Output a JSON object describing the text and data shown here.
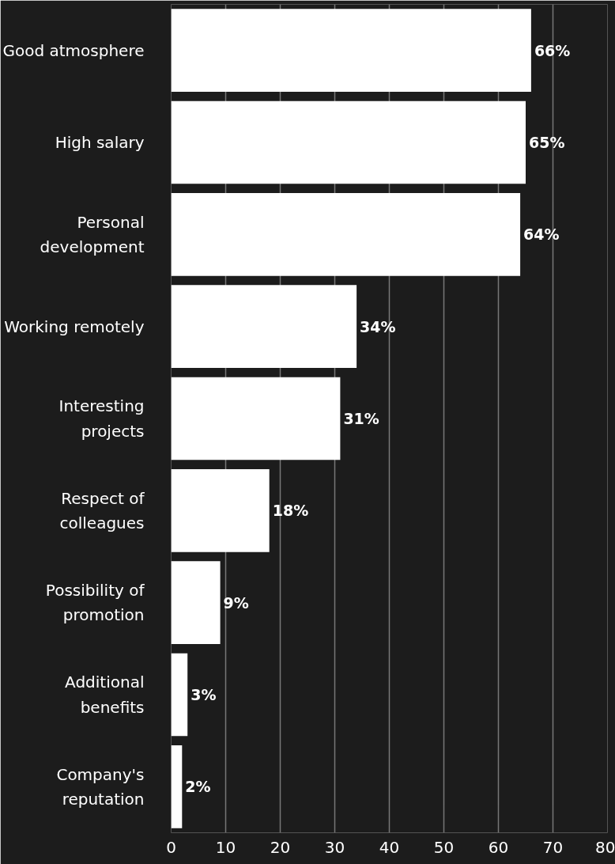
{
  "chart_data": {
    "type": "bar",
    "orientation": "horizontal",
    "categories": [
      "Good atmosphere",
      "High salary",
      "Personal development",
      "Working remotely",
      "Interesting projects",
      "Respect of colleagues",
      "Possibility of promotion",
      "Additional benefits",
      "Company's reputation"
    ],
    "values": [
      66,
      65,
      64,
      34,
      31,
      18,
      9,
      3,
      2
    ],
    "value_labels": [
      "66%",
      "65%",
      "64%",
      "34%",
      "31%",
      "18%",
      "9%",
      "3%",
      "2%"
    ],
    "color": "#ffffff",
    "xlim": [
      0,
      80
    ],
    "xticks": [
      0,
      10,
      20,
      30,
      40,
      50,
      60,
      70,
      80
    ],
    "grid": "x"
  }
}
